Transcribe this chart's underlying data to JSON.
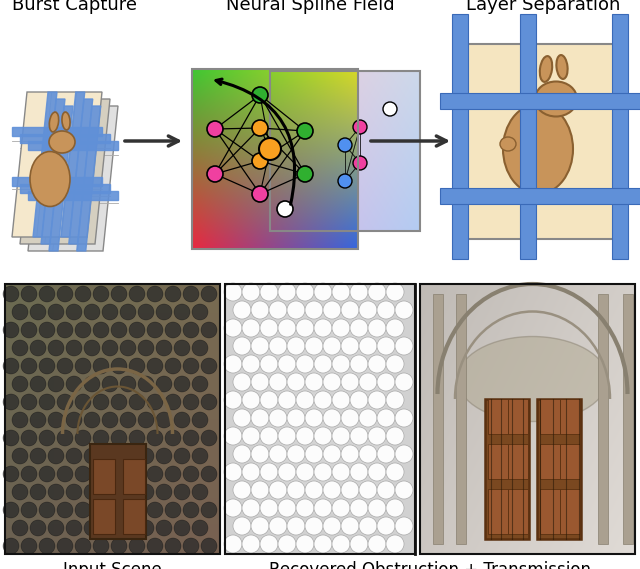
{
  "title_top_left": "Burst Capture",
  "title_top_middle": "Neural Spline Field",
  "title_top_right": "Layer Separation",
  "label_bottom_left": "Input Scene",
  "label_bottom_right": "Recovered Obstruction + Transmission",
  "bg_color": "#ffffff",
  "fig_width": 6.4,
  "fig_height": 5.69,
  "blue_bar_color": "#6090d8",
  "burst_bg_color": "#f5e8cc",
  "rabbit_bg_color": "#f5e5c0",
  "arrow_color": "#222222",
  "frame_colors": [
    "#e8e8e8",
    "#d5cfc5",
    "#f5e8cc"
  ],
  "node_pink": "#f040a0",
  "node_orange": "#f8a020",
  "node_green": "#30b030",
  "node_blue": "#5090f0",
  "node_white": "#ffffff",
  "rabbit_fill": "#c8945a",
  "rabbit_edge": "#8a6030"
}
